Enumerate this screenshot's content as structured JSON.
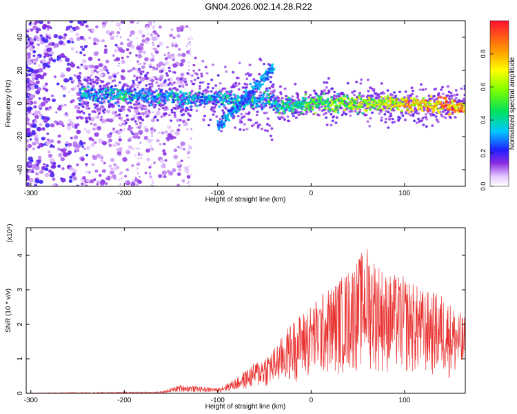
{
  "title": "GN04.2026.002.14.28.R22",
  "chart_data": [
    {
      "type": "heatmap",
      "xlabel": "Height of straight line (km)",
      "ylabel": "Frequency (Hz)",
      "xlim": [
        -305,
        165
      ],
      "ylim": [
        -50,
        50
      ],
      "xticks": [
        -300,
        -200,
        -100,
        0,
        100
      ],
      "yticks": [
        -40,
        -20,
        0,
        20,
        40
      ],
      "colorbar": {
        "label": "Normalized spectral amplitude",
        "range": [
          0,
          1
        ],
        "ticks": [
          "0.0",
          "0.2",
          "0.4",
          "0.6",
          "0.8"
        ],
        "colormap": "rainbow (white → violet → blue → cyan → green → yellow → orange → red)"
      },
      "features": [
        {
          "name": "main band",
          "x": [
            -245,
            165
          ],
          "freq_hz": [
            6,
            0,
            -2
          ],
          "amplitude_trend": "increases toward positive heights"
        },
        {
          "name": "ascending branch",
          "x": [
            -100,
            -40
          ],
          "freq_hz": [
            -14,
            22
          ]
        },
        {
          "name": "scattered noise",
          "x": [
            -305,
            -130
          ],
          "freq_hz": [
            -50,
            50
          ]
        }
      ]
    },
    {
      "type": "line",
      "xlabel": "Height of straight line (km)",
      "ylabel": "SNR (10 * v/v)",
      "y_multiplier": "(x10⁴)",
      "xlim": [
        -305,
        165
      ],
      "ylim": [
        0,
        4.8
      ],
      "xticks": [
        -300,
        -200,
        -100,
        0,
        100
      ],
      "yticks": [
        0,
        1,
        2,
        3,
        4
      ],
      "color": "#e8312f",
      "envelope_x": [
        -305,
        -160,
        -140,
        -100,
        -80,
        -60,
        -40,
        -20,
        0,
        20,
        40,
        60,
        80,
        100,
        120,
        140,
        165
      ],
      "envelope_y": [
        0.01,
        0.05,
        0.25,
        0.15,
        0.45,
        0.9,
        1.3,
        2.1,
        2.6,
        3.1,
        3.6,
        4.3,
        3.5,
        3.4,
        3.0,
        2.9,
        2.2
      ]
    }
  ]
}
